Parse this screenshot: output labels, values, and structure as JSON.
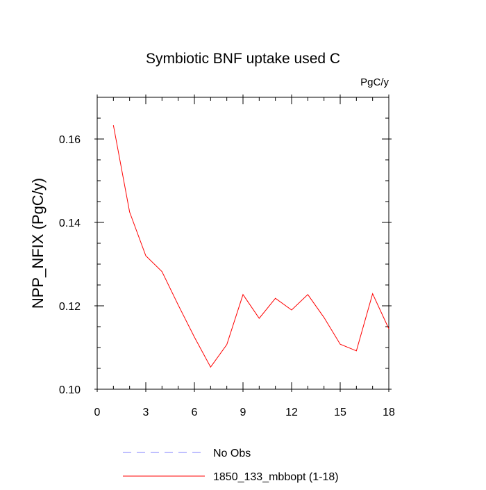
{
  "chart_data": {
    "type": "line",
    "title": "Symbiotic BNF uptake used C",
    "units_label": "PgC/y",
    "ylabel": "NPP_NFIX  (PgC/y)",
    "xlabel": "",
    "xlim": [
      0,
      18
    ],
    "ylim": [
      0.1,
      0.17
    ],
    "x_ticks": [
      0,
      3,
      6,
      9,
      12,
      15,
      18
    ],
    "x_tick_labels": [
      "0",
      "3",
      "6",
      "9",
      "12",
      "15",
      "18"
    ],
    "y_ticks": [
      0.1,
      0.12,
      0.14,
      0.16
    ],
    "y_tick_labels": [
      "0.10",
      "0.12",
      "0.14",
      "0.16"
    ],
    "grid": false,
    "legend_position": "bottom",
    "series": [
      {
        "name": "No Obs",
        "style": "dashed",
        "color": "#8080ff",
        "x": [],
        "y": []
      },
      {
        "name": "1850_133_mbbopt (1-18)",
        "style": "solid",
        "color": "#ff0000",
        "x": [
          1,
          2,
          3,
          4,
          5,
          6,
          7,
          8,
          9,
          10,
          11,
          12,
          13,
          14,
          15,
          16,
          17,
          18
        ],
        "y": [
          0.1633,
          0.1425,
          0.132,
          0.1282,
          0.1202,
          0.1125,
          0.1053,
          0.1107,
          0.1227,
          0.117,
          0.1218,
          0.119,
          0.1227,
          0.1172,
          0.1108,
          0.1092,
          0.1229,
          0.1145
        ]
      }
    ]
  }
}
